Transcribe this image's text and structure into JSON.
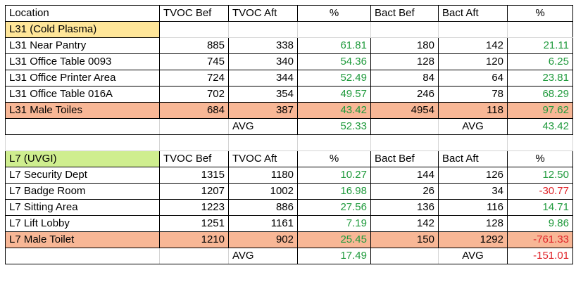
{
  "header": [
    "Location",
    "TVOC Bef",
    "TVOC Aft",
    "%",
    "Bact Bef",
    "Bact Aft",
    "%"
  ],
  "section1": {
    "title": "L31 (Cold Plasma)",
    "rows": [
      {
        "loc": "L31 Near Pantry",
        "tb": "885",
        "ta": "338",
        "tp": "61.81",
        "bb": "180",
        "ba": "142",
        "bp": "21.11"
      },
      {
        "loc": "L31 Office Table 0093",
        "tb": "745",
        "ta": "340",
        "tp": "54.36",
        "bb": "128",
        "ba": "120",
        "bp": "6.25"
      },
      {
        "loc": "L31 Office Printer Area",
        "tb": "724",
        "ta": "344",
        "tp": "52.49",
        "bb": "84",
        "ba": "64",
        "bp": "23.81"
      },
      {
        "loc": "L31 Office Table 016A",
        "tb": "702",
        "ta": "354",
        "tp": "49.57",
        "bb": "246",
        "ba": "78",
        "bp": "68.29"
      },
      {
        "loc": "L31 Male Toiles",
        "tb": "684",
        "ta": "387",
        "tp": "43.42",
        "bb": "4954",
        "ba": "118",
        "bp": "97.62"
      }
    ],
    "avg_label": "AVG",
    "tvoc_avg": "52.33",
    "bact_avg": "43.42"
  },
  "section2": {
    "title": "L7 (UVGI)",
    "header": [
      "TVOC Bef",
      "TVOC Aft",
      "%",
      "Bact Bef",
      "Bact Aft",
      "%"
    ],
    "rows": [
      {
        "loc": "L7 Security Dept",
        "tb": "1315",
        "ta": "1180",
        "tp": "10.27",
        "bb": "144",
        "ba": "126",
        "bp": "12.50"
      },
      {
        "loc": "L7 Badge Room",
        "tb": "1207",
        "ta": "1002",
        "tp": "16.98",
        "bb": "26",
        "ba": "34",
        "bp": "-30.77"
      },
      {
        "loc": "L7 Sitting Area",
        "tb": "1223",
        "ta": "886",
        "tp": "27.56",
        "bb": "136",
        "ba": "116",
        "bp": "14.71"
      },
      {
        "loc": "L7 Lift Lobby",
        "tb": "1251",
        "ta": "1161",
        "tp": "7.19",
        "bb": "142",
        "ba": "128",
        "bp": "9.86"
      },
      {
        "loc": "L7 Male Toilet",
        "tb": "1210",
        "ta": "902",
        "tp": "25.45",
        "bb": "150",
        "ba": "1292",
        "bp": "-761.33"
      }
    ],
    "avg_label": "AVG",
    "tvoc_avg": "17.49",
    "bact_avg": "-151.01"
  },
  "colors": {
    "positive": "#1f9a3c",
    "negative": "#e0242a",
    "section1_title_bg": "#ffe699",
    "section2_title_bg": "#cfee8f",
    "highlight_row_bg": "#f8b796"
  }
}
